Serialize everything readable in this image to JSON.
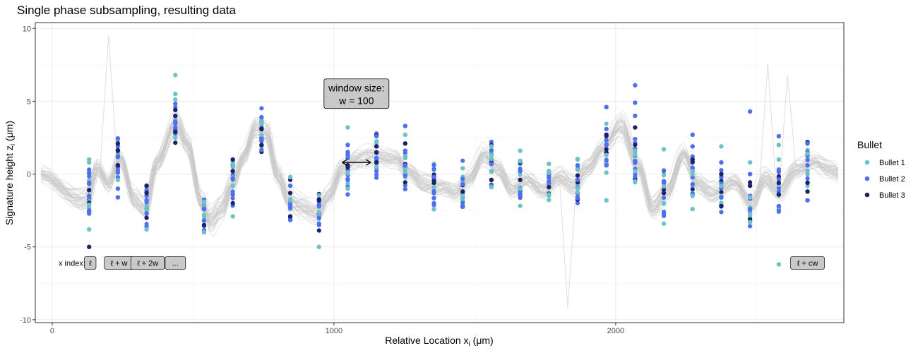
{
  "chart_data": {
    "type": "scatter",
    "title": "Single phase subsampling, resulting data",
    "xlabel": "Relative Location x",
    "xlabel_sub": "i",
    "xlabel_unit": " (μm)",
    "ylabel": "Signature height z",
    "ylabel_sub": "i",
    "ylabel_unit": " (μm)",
    "xlim": [
      -60,
      2810
    ],
    "ylim": [
      -10.2,
      10.4
    ],
    "x_ticks": [
      0,
      1000,
      2000
    ],
    "y_ticks": [
      -10,
      -5,
      0,
      5,
      10
    ],
    "grid": true,
    "legend": {
      "title": "Bullet",
      "placement": "right",
      "entries": [
        {
          "label": "Bullet 1",
          "color": "#6cc3c6"
        },
        {
          "label": "Bullet 2",
          "color": "#4f6ef0"
        },
        {
          "label": "Bullet 3",
          "color": "#1f2266"
        }
      ]
    },
    "background_curves_color": "#c9c9c9",
    "signature_profile": [
      [
        -60,
        0
      ],
      [
        120,
        -1.8
      ],
      [
        160,
        0.5
      ],
      [
        200,
        -0.6
      ],
      [
        240,
        1.1
      ],
      [
        290,
        -1.8
      ],
      [
        330,
        -2.4
      ],
      [
        370,
        0.8
      ],
      [
        440,
        3.6
      ],
      [
        480,
        2.2
      ],
      [
        530,
        -2.0
      ],
      [
        560,
        -3.3
      ],
      [
        600,
        -2.4
      ],
      [
        640,
        -0.6
      ],
      [
        680,
        1.2
      ],
      [
        720,
        3.2
      ],
      [
        760,
        3.0
      ],
      [
        800,
        0.0
      ],
      [
        840,
        -1.8
      ],
      [
        880,
        -2.2
      ],
      [
        940,
        -2.7
      ],
      [
        980,
        -1.6
      ],
      [
        1030,
        0.4
      ],
      [
        1080,
        1.1
      ],
      [
        1140,
        1.3
      ],
      [
        1220,
        1.2
      ],
      [
        1260,
        0.2
      ],
      [
        1320,
        -0.7
      ],
      [
        1380,
        -0.9
      ],
      [
        1430,
        -1.3
      ],
      [
        1480,
        -0.2
      ],
      [
        1530,
        1.4
      ],
      [
        1580,
        0.4
      ],
      [
        1630,
        -1.0
      ],
      [
        1680,
        -0.4
      ],
      [
        1740,
        -1.2
      ],
      [
        1800,
        -0.1
      ],
      [
        1850,
        -0.8
      ],
      [
        1900,
        0.5
      ],
      [
        1950,
        1.8
      ],
      [
        2020,
        3.3
      ],
      [
        2080,
        0.6
      ],
      [
        2130,
        -2.4
      ],
      [
        2180,
        -1.2
      ],
      [
        2240,
        1.5
      ],
      [
        2290,
        -0.7
      ],
      [
        2340,
        -1.3
      ],
      [
        2420,
        -0.6
      ],
      [
        2480,
        -2.0
      ],
      [
        2530,
        -0.2
      ],
      [
        2580,
        -1.2
      ],
      [
        2640,
        0.4
      ],
      [
        2700,
        0.8
      ],
      [
        2760,
        0.3
      ],
      [
        2810,
        0
      ]
    ],
    "window_x": [
      131,
      233,
      335,
      437,
      539,
      641,
      743,
      845,
      947,
      1049,
      1151,
      1253,
      1355,
      1457,
      1559,
      1661,
      1763,
      1865,
      1967,
      2069,
      2171,
      2273,
      2375,
      2477,
      2579,
      2681
    ],
    "points": [
      {
        "x": 131,
        "y": 1.0,
        "series": 1
      },
      {
        "x": 131,
        "y": -5.0,
        "series": 3
      },
      {
        "x": 131,
        "y": -3.8,
        "series": 1
      },
      {
        "x": 131,
        "y": 0.3,
        "series": 2
      },
      {
        "x": 131,
        "y": -0.6,
        "series": 2
      },
      {
        "x": 131,
        "y": -1.1,
        "series": 3
      },
      {
        "x": 131,
        "y": -1.5,
        "series": 2
      },
      {
        "x": 131,
        "y": -2.1,
        "series": 1
      },
      {
        "x": 131,
        "y": -2.6,
        "series": 2
      },
      {
        "x": 131,
        "y": 0.8,
        "series": 1
      },
      {
        "x": 233,
        "y": 2.1,
        "series": 3
      },
      {
        "x": 233,
        "y": 1.6,
        "series": 3
      },
      {
        "x": 233,
        "y": 1.2,
        "series": 2
      },
      {
        "x": 233,
        "y": 0.6,
        "series": 3
      },
      {
        "x": 233,
        "y": 0.1,
        "series": 2
      },
      {
        "x": 233,
        "y": -0.4,
        "series": 1
      },
      {
        "x": 233,
        "y": -1.0,
        "series": 2
      },
      {
        "x": 233,
        "y": -1.6,
        "series": 2
      },
      {
        "x": 335,
        "y": -0.8,
        "series": 3
      },
      {
        "x": 335,
        "y": -1.3,
        "series": 3
      },
      {
        "x": 335,
        "y": -1.8,
        "series": 2
      },
      {
        "x": 335,
        "y": -2.2,
        "series": 1
      },
      {
        "x": 335,
        "y": -2.7,
        "series": 2
      },
      {
        "x": 335,
        "y": -3.8,
        "series": 1
      },
      {
        "x": 335,
        "y": -3.0,
        "series": 3
      },
      {
        "x": 437,
        "y": 6.8,
        "series": 1
      },
      {
        "x": 437,
        "y": 5.5,
        "series": 1
      },
      {
        "x": 437,
        "y": 4.4,
        "series": 3
      },
      {
        "x": 437,
        "y": 4.0,
        "series": 3
      },
      {
        "x": 437,
        "y": 3.6,
        "series": 2
      },
      {
        "x": 437,
        "y": 3.2,
        "series": 2
      },
      {
        "x": 437,
        "y": 2.9,
        "series": 3
      },
      {
        "x": 437,
        "y": 2.5,
        "series": 1
      },
      {
        "x": 539,
        "y": -2.0,
        "series": 1
      },
      {
        "x": 539,
        "y": -2.4,
        "series": 2
      },
      {
        "x": 539,
        "y": -2.8,
        "series": 1
      },
      {
        "x": 539,
        "y": -3.2,
        "series": 2
      },
      {
        "x": 539,
        "y": -3.5,
        "series": 3
      },
      {
        "x": 539,
        "y": -4.0,
        "series": 1
      },
      {
        "x": 641,
        "y": 1.0,
        "series": 3
      },
      {
        "x": 641,
        "y": 0.2,
        "series": 3
      },
      {
        "x": 641,
        "y": -0.3,
        "series": 2
      },
      {
        "x": 641,
        "y": -0.8,
        "series": 1
      },
      {
        "x": 641,
        "y": -1.4,
        "series": 2
      },
      {
        "x": 641,
        "y": -2.9,
        "series": 1
      },
      {
        "x": 743,
        "y": 3.9,
        "series": 2
      },
      {
        "x": 743,
        "y": 3.5,
        "series": 1
      },
      {
        "x": 743,
        "y": 3.1,
        "series": 3
      },
      {
        "x": 743,
        "y": 2.7,
        "series": 1
      },
      {
        "x": 743,
        "y": 2.3,
        "series": 2
      },
      {
        "x": 743,
        "y": 2.0,
        "series": 3
      },
      {
        "x": 845,
        "y": -0.2,
        "series": 1
      },
      {
        "x": 845,
        "y": -0.8,
        "series": 2
      },
      {
        "x": 845,
        "y": -1.3,
        "series": 3
      },
      {
        "x": 845,
        "y": -1.8,
        "series": 1
      },
      {
        "x": 845,
        "y": -2.3,
        "series": 2
      },
      {
        "x": 845,
        "y": -2.9,
        "series": 3
      },
      {
        "x": 947,
        "y": -1.8,
        "series": 3
      },
      {
        "x": 947,
        "y": -2.2,
        "series": 2
      },
      {
        "x": 947,
        "y": -2.6,
        "series": 1
      },
      {
        "x": 947,
        "y": -3.0,
        "series": 2
      },
      {
        "x": 947,
        "y": -5.0,
        "series": 1
      },
      {
        "x": 1049,
        "y": 3.2,
        "series": 1
      },
      {
        "x": 1049,
        "y": 2.0,
        "series": 2
      },
      {
        "x": 1049,
        "y": 1.1,
        "series": 2
      },
      {
        "x": 1049,
        "y": 0.6,
        "series": 3
      },
      {
        "x": 1049,
        "y": 0.1,
        "series": 1
      },
      {
        "x": 1049,
        "y": -0.4,
        "series": 2
      },
      {
        "x": 1049,
        "y": -1.0,
        "series": 1
      },
      {
        "x": 1049,
        "y": -1.4,
        "series": 2
      },
      {
        "x": 1151,
        "y": 1.9,
        "series": 3
      },
      {
        "x": 1151,
        "y": 1.5,
        "series": 3
      },
      {
        "x": 1151,
        "y": 1.1,
        "series": 2
      },
      {
        "x": 1151,
        "y": 0.8,
        "series": 3
      },
      {
        "x": 1151,
        "y": 0.5,
        "series": 1
      },
      {
        "x": 1151,
        "y": 0.2,
        "series": 2
      },
      {
        "x": 1253,
        "y": 3.3,
        "series": 2
      },
      {
        "x": 1253,
        "y": 2.7,
        "series": 1
      },
      {
        "x": 1253,
        "y": 2.1,
        "series": 3
      },
      {
        "x": 1253,
        "y": 1.6,
        "series": 2
      },
      {
        "x": 1253,
        "y": 1.1,
        "series": 1
      },
      {
        "x": 1253,
        "y": 0.6,
        "series": 2
      },
      {
        "x": 1253,
        "y": 0.2,
        "series": 1
      },
      {
        "x": 1355,
        "y": -0.2,
        "series": 2
      },
      {
        "x": 1355,
        "y": -0.6,
        "series": 3
      },
      {
        "x": 1355,
        "y": -0.9,
        "series": 1
      },
      {
        "x": 1355,
        "y": -1.3,
        "series": 2
      },
      {
        "x": 1457,
        "y": 0.4,
        "series": 1
      },
      {
        "x": 1457,
        "y": -0.7,
        "series": 2
      },
      {
        "x": 1457,
        "y": -1.2,
        "series": 3
      },
      {
        "x": 1457,
        "y": -1.7,
        "series": 1
      },
      {
        "x": 1457,
        "y": -2.2,
        "series": 2
      },
      {
        "x": 1559,
        "y": 1.9,
        "series": 1
      },
      {
        "x": 1559,
        "y": 1.3,
        "series": 1
      },
      {
        "x": 1559,
        "y": 0.7,
        "series": 2
      },
      {
        "x": 1559,
        "y": 0.2,
        "series": 1
      },
      {
        "x": 1559,
        "y": -0.4,
        "series": 3
      },
      {
        "x": 1559,
        "y": -0.9,
        "series": 1
      },
      {
        "x": 1661,
        "y": 1.6,
        "series": 1
      },
      {
        "x": 1661,
        "y": 0.9,
        "series": 1
      },
      {
        "x": 1661,
        "y": 0.2,
        "series": 2
      },
      {
        "x": 1661,
        "y": -0.4,
        "series": 3
      },
      {
        "x": 1661,
        "y": -1.0,
        "series": 1
      },
      {
        "x": 1661,
        "y": -1.6,
        "series": 2
      },
      {
        "x": 1763,
        "y": 0.7,
        "series": 1
      },
      {
        "x": 1763,
        "y": 0.1,
        "series": 1
      },
      {
        "x": 1763,
        "y": -0.5,
        "series": 2
      },
      {
        "x": 1763,
        "y": -0.9,
        "series": 3
      },
      {
        "x": 1763,
        "y": -1.4,
        "series": 1
      },
      {
        "x": 1865,
        "y": 1.0,
        "series": 1
      },
      {
        "x": 1865,
        "y": 0.6,
        "series": 2
      },
      {
        "x": 1865,
        "y": 0.3,
        "series": 1
      },
      {
        "x": 1865,
        "y": -0.1,
        "series": 3
      },
      {
        "x": 1865,
        "y": -0.4,
        "series": 2
      },
      {
        "x": 1967,
        "y": 4.6,
        "series": 2
      },
      {
        "x": 1967,
        "y": 2.7,
        "series": 3
      },
      {
        "x": 1967,
        "y": 2.0,
        "series": 2
      },
      {
        "x": 1967,
        "y": 1.3,
        "series": 1
      },
      {
        "x": 1967,
        "y": 0.6,
        "series": 2
      },
      {
        "x": 1967,
        "y": 0.1,
        "series": 1
      },
      {
        "x": 1967,
        "y": -1.8,
        "series": 1
      },
      {
        "x": 2069,
        "y": 6.1,
        "series": 2
      },
      {
        "x": 2069,
        "y": 4.9,
        "series": 2
      },
      {
        "x": 2069,
        "y": 4.0,
        "series": 2
      },
      {
        "x": 2069,
        "y": 3.2,
        "series": 3
      },
      {
        "x": 2069,
        "y": 2.4,
        "series": 2
      },
      {
        "x": 2069,
        "y": 1.6,
        "series": 1
      },
      {
        "x": 2069,
        "y": 0.9,
        "series": 2
      },
      {
        "x": 2069,
        "y": 0.2,
        "series": 1
      },
      {
        "x": 2069,
        "y": -0.5,
        "series": 1
      },
      {
        "x": 2171,
        "y": 1.7,
        "series": 1
      },
      {
        "x": 2171,
        "y": -0.5,
        "series": 2
      },
      {
        "x": 2171,
        "y": -1.3,
        "series": 3
      },
      {
        "x": 2171,
        "y": -2.0,
        "series": 1
      },
      {
        "x": 2171,
        "y": -2.7,
        "series": 2
      },
      {
        "x": 2171,
        "y": -3.4,
        "series": 1
      },
      {
        "x": 2273,
        "y": 2.7,
        "series": 2
      },
      {
        "x": 2273,
        "y": 1.9,
        "series": 2
      },
      {
        "x": 2273,
        "y": 1.0,
        "series": 3
      },
      {
        "x": 2273,
        "y": 0.2,
        "series": 1
      },
      {
        "x": 2273,
        "y": -0.7,
        "series": 2
      },
      {
        "x": 2273,
        "y": -1.5,
        "series": 1
      },
      {
        "x": 2273,
        "y": -2.4,
        "series": 1
      },
      {
        "x": 2375,
        "y": 1.9,
        "series": 1
      },
      {
        "x": 2375,
        "y": 0.8,
        "series": 2
      },
      {
        "x": 2375,
        "y": 0.0,
        "series": 3
      },
      {
        "x": 2375,
        "y": -0.8,
        "series": 1
      },
      {
        "x": 2375,
        "y": -1.6,
        "series": 2
      },
      {
        "x": 2375,
        "y": -2.2,
        "series": 3
      },
      {
        "x": 2477,
        "y": 4.3,
        "series": 2
      },
      {
        "x": 2477,
        "y": 0.8,
        "series": 1
      },
      {
        "x": 2477,
        "y": 0.0,
        "series": 2
      },
      {
        "x": 2477,
        "y": -0.8,
        "series": 3
      },
      {
        "x": 2477,
        "y": -1.6,
        "series": 1
      },
      {
        "x": 2477,
        "y": -2.4,
        "series": 2
      },
      {
        "x": 2477,
        "y": -3.3,
        "series": 1
      },
      {
        "x": 2579,
        "y": 2.6,
        "series": 2
      },
      {
        "x": 2579,
        "y": 2.0,
        "series": 1
      },
      {
        "x": 2579,
        "y": 1.0,
        "series": 1
      },
      {
        "x": 2579,
        "y": 0.2,
        "series": 2
      },
      {
        "x": 2579,
        "y": -0.6,
        "series": 3
      },
      {
        "x": 2579,
        "y": -1.4,
        "series": 3
      },
      {
        "x": 2579,
        "y": -2.2,
        "series": 2
      },
      {
        "x": 2579,
        "y": -6.2,
        "series": 1
      },
      {
        "x": 2681,
        "y": 2.1,
        "series": 2
      },
      {
        "x": 2681,
        "y": 1.4,
        "series": 1
      },
      {
        "x": 2681,
        "y": 0.6,
        "series": 2
      },
      {
        "x": 2681,
        "y": 0.0,
        "series": 1
      },
      {
        "x": 2681,
        "y": -0.6,
        "series": 3
      },
      {
        "x": 2681,
        "y": -1.2,
        "series": 3
      },
      {
        "x": 2681,
        "y": -1.8,
        "series": 2
      }
    ],
    "annotations": {
      "window_box": [
        "window size:",
        "w = 100"
      ],
      "window_arrow_x": [
        1029,
        1131
      ],
      "window_arrow_y": 0.8,
      "x_index_label": "x index:",
      "index_labels": [
        {
          "text": "ℓ",
          "x": 135
        },
        {
          "text": "ℓ + w",
          "x": 237
        },
        {
          "text": "ℓ + 2w",
          "x": 339
        },
        {
          "text": "...",
          "x": 437
        },
        {
          "text": "ℓ + cw",
          "x": 2681
        }
      ],
      "index_y": -6.1
    }
  }
}
